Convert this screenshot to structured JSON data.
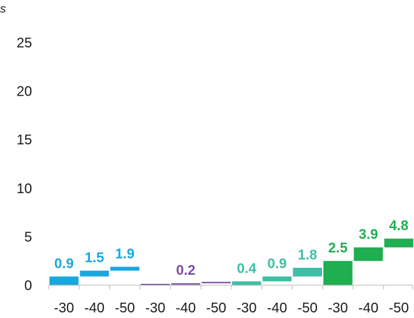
{
  "chart_data": {
    "type": "bar",
    "subtype": "waterfall",
    "title": "",
    "corner_label": "s",
    "xlabel": "",
    "ylabel": "",
    "ylim": [
      0,
      25
    ],
    "yticks": [
      "0",
      "5",
      "10",
      "15",
      "20",
      "25"
    ],
    "categories": [
      "-30",
      "-40",
      "-50",
      "-30",
      "-40",
      "-50",
      "-30",
      "-40",
      "-50",
      "-30",
      "-40",
      "-50"
    ],
    "grid": false,
    "groups": [
      {
        "color": "#1aa7e0",
        "bars": [
          {
            "label": "0.9",
            "low": 0.0,
            "high": 0.9
          },
          {
            "label": "1.5",
            "low": 0.9,
            "high": 1.5
          },
          {
            "label": "1.9",
            "low": 1.5,
            "high": 1.9
          }
        ]
      },
      {
        "color": "#7a4fa0",
        "bars": [
          {
            "label": "",
            "low": 0.0,
            "high": 0.05
          },
          {
            "label": "0.2",
            "low": 0.05,
            "high": 0.2
          },
          {
            "label": "",
            "low": 0.2,
            "high": 0.2
          }
        ]
      },
      {
        "color": "#3dbfa6",
        "bars": [
          {
            "label": "0.4",
            "low": 0.0,
            "high": 0.4
          },
          {
            "label": "0.9",
            "low": 0.4,
            "high": 0.9
          },
          {
            "label": "1.8",
            "low": 0.9,
            "high": 1.8
          }
        ]
      },
      {
        "color": "#1fae50",
        "bars": [
          {
            "label": "2.5",
            "low": 0.0,
            "high": 2.5
          },
          {
            "label": "3.9",
            "low": 2.5,
            "high": 3.9
          },
          {
            "label": "4.8",
            "low": 3.9,
            "high": 4.8
          }
        ]
      }
    ]
  }
}
